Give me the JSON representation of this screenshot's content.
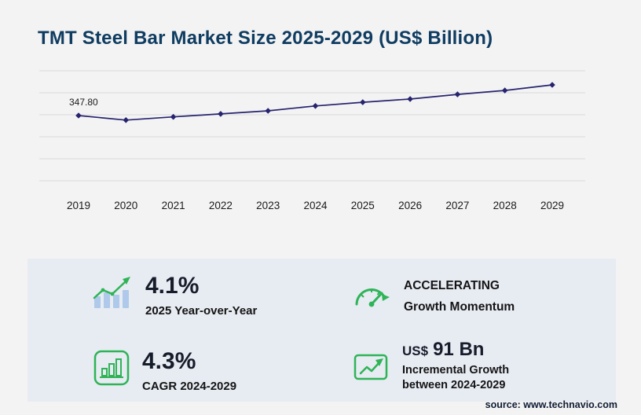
{
  "page": {
    "title": "TMT Steel Bar Market Size 2025-2029 (US$ Billion)",
    "source": "source: www.technavio.com"
  },
  "colors": {
    "title": "#0f3c61",
    "line": "#26246f",
    "grid": "#d9d9d9",
    "accent_green": "#2eb457",
    "bar_blue": "#aec9e9",
    "panel_bg": "#e7ebf2"
  },
  "chart_data": {
    "type": "line",
    "title": "TMT Steel Bar Market Size 2025-2029 (US$ Billion)",
    "unit": "US$ Billion",
    "categories": [
      "2019",
      "2020",
      "2021",
      "2022",
      "2023",
      "2024",
      "2025",
      "2026",
      "2027",
      "2028",
      "2029"
    ],
    "values": [
      347.8,
      328,
      342,
      355,
      368,
      389,
      405,
      419,
      439,
      456,
      480
    ],
    "values_note": "Only the 2019 value (347.80) is labeled on the chart; remaining values estimated from the line shape and the stated 4.1% YoY, 4.3% CAGR and US$ 91 Bn incremental growth",
    "first_point_label": "347.80",
    "grid": true,
    "legend": false,
    "xlabel": "",
    "ylabel": ""
  },
  "stats": {
    "yoy": {
      "value": "4.1%",
      "label": "2025 Year-over-Year"
    },
    "momentum": {
      "line1": "ACCELERATING",
      "line2": "Growth Momentum"
    },
    "cagr": {
      "value": "4.3%",
      "label": "CAGR 2024-2029"
    },
    "incremental": {
      "currency": "US$",
      "value": "91 Bn",
      "line1": "Incremental Growth",
      "line2": "between 2024-2029"
    }
  },
  "icons": {
    "yoy": "bar-growth-icon",
    "momentum": "speedometer-icon",
    "cagr": "bar-chart-box-icon",
    "incremental": "growth-arrow-box-icon"
  }
}
